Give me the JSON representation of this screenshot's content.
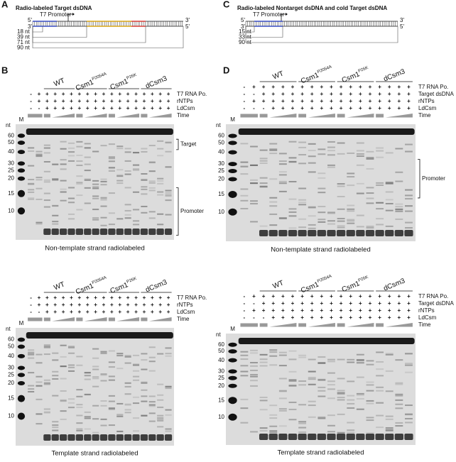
{
  "diagrams": [
    {
      "label": "A",
      "title": "Radio-labeled Target dsDNA",
      "promoter": "T7 Promoter",
      "strand_ends": [
        "5'",
        "3'",
        "3'",
        "5'"
      ],
      "lengths": [
        "18 nt",
        "39 nt",
        "71 nt",
        "90 nt"
      ]
    },
    {
      "label": "C",
      "title": "Radio-labeled Nontarget dsDNA and cold Target dsDNA",
      "promoter": "T7 Promoter",
      "strand_ends": [
        "5'",
        "3'",
        "3'",
        "5'"
      ],
      "lengths": [
        "15 nt",
        "33 nt",
        "90 nt"
      ]
    }
  ],
  "figures": [
    {
      "label": "B",
      "gels": [
        {
          "groups": [
            {
              "name": "WT"
            },
            {
              "name": "Csm1",
              "sup": "P2054A"
            },
            {
              "name": "Csm1",
              "sup": "P26K"
            },
            {
              "name": "dCsm3"
            }
          ],
          "conditions": [
            "T7 RNA Po.",
            "rNTPs",
            "LdCsm",
            "Time"
          ],
          "signs": [
            [
              "-",
              "+",
              "+",
              "+",
              "+",
              "+",
              "+",
              "+",
              "+",
              "+",
              "+",
              "+",
              "+",
              "+",
              "+",
              "+",
              "+",
              "+"
            ],
            [
              "-",
              "+",
              "+",
              "+",
              "+",
              "+",
              "+",
              "+",
              "+",
              "+",
              "+",
              "+",
              "+",
              "+",
              "+",
              "+",
              "+",
              "+"
            ],
            [
              "-",
              "-",
              "+",
              "+",
              "+",
              "+",
              "+",
              "+",
              "+",
              "+",
              "+",
              "+",
              "+",
              "+",
              "+",
              "+",
              "+",
              "+"
            ]
          ],
          "marker": "M",
          "unit": "nt",
          "ladder": [
            60,
            50,
            40,
            30,
            25,
            20,
            15,
            10
          ],
          "brackets": [
            "Target",
            "Promoter"
          ],
          "caption": "Non-template strand radiolabeled"
        },
        {
          "groups": [
            {
              "name": "WT"
            },
            {
              "name": "Csm1",
              "sup": "P2054A"
            },
            {
              "name": "Csm1",
              "sup": "P26K"
            },
            {
              "name": "dCsm3"
            }
          ],
          "conditions": [
            "T7 RNA Po.",
            "rNTPs",
            "LdCsm",
            "Time"
          ],
          "signs": [
            [
              "-",
              "+",
              "+",
              "+",
              "+",
              "+",
              "+",
              "+",
              "+",
              "+",
              "+",
              "+",
              "+",
              "+",
              "+",
              "+",
              "+",
              "+"
            ],
            [
              "-",
              "+",
              "+",
              "+",
              "+",
              "+",
              "+",
              "+",
              "+",
              "+",
              "+",
              "+",
              "+",
              "+",
              "+",
              "+",
              "+",
              "+"
            ],
            [
              "-",
              "-",
              "+",
              "+",
              "+",
              "+",
              "+",
              "+",
              "+",
              "+",
              "+",
              "+",
              "+",
              "+",
              "+",
              "+",
              "+",
              "+"
            ]
          ],
          "marker": "M",
          "unit": "nt",
          "ladder": [
            60,
            50,
            40,
            30,
            25,
            20,
            15,
            10
          ],
          "brackets": [],
          "caption": "Template strand radiolabeled"
        }
      ]
    },
    {
      "label": "D",
      "gels": [
        {
          "groups": [
            {
              "name": "WT"
            },
            {
              "name": "Csm1",
              "sup": "P2054A"
            },
            {
              "name": "Csm1",
              "sup": "P26K"
            },
            {
              "name": "dCsm3"
            }
          ],
          "conditions": [
            "T7 RNA Po.",
            "Target dsDNA",
            "rNTPs",
            "LdCsm",
            "Time"
          ],
          "signs": [
            [
              "-",
              "+",
              "+",
              "+",
              "+",
              "+",
              "+",
              "+",
              "+",
              "+",
              "+",
              "+",
              "+",
              "+",
              "+",
              "+",
              "+",
              "+"
            ],
            [
              "-",
              "-",
              "+",
              "+",
              "+",
              "+",
              "+",
              "+",
              "+",
              "+",
              "+",
              "+",
              "+",
              "+",
              "+",
              "+",
              "+",
              "+"
            ],
            [
              "-",
              "+",
              "+",
              "+",
              "+",
              "+",
              "+",
              "+",
              "+",
              "+",
              "+",
              "+",
              "+",
              "+",
              "+",
              "+",
              "+",
              "+"
            ],
            [
              "-",
              "-",
              "-",
              "+",
              "+",
              "+",
              "+",
              "+",
              "+",
              "+",
              "+",
              "+",
              "+",
              "+",
              "+",
              "+",
              "+",
              "+"
            ]
          ],
          "marker": "M",
          "unit": "nt",
          "ladder": [
            60,
            50,
            40,
            30,
            25,
            20,
            15,
            10
          ],
          "brackets": [
            "Promoter"
          ],
          "caption": "Non-template strand radiolabeled"
        },
        {
          "groups": [
            {
              "name": "WT"
            },
            {
              "name": "Csm1",
              "sup": "P2054A"
            },
            {
              "name": "Csm1",
              "sup": "P26K"
            },
            {
              "name": "dCsm3"
            }
          ],
          "conditions": [
            "T7 RNA Po.",
            "Target dsDNA",
            "rNTPs",
            "LdCsm",
            "Time"
          ],
          "signs": [
            [
              "-",
              "+",
              "+",
              "+",
              "+",
              "+",
              "+",
              "+",
              "+",
              "+",
              "+",
              "+",
              "+",
              "+",
              "+",
              "+",
              "+",
              "+"
            ],
            [
              "-",
              "-",
              "+",
              "+",
              "+",
              "+",
              "+",
              "+",
              "+",
              "+",
              "+",
              "+",
              "+",
              "+",
              "+",
              "+",
              "+",
              "+"
            ],
            [
              "-",
              "+",
              "+",
              "+",
              "+",
              "+",
              "+",
              "+",
              "+",
              "+",
              "+",
              "+",
              "+",
              "+",
              "+",
              "+",
              "+",
              "+"
            ],
            [
              "-",
              "-",
              "-",
              "+",
              "+",
              "+",
              "+",
              "+",
              "+",
              "+",
              "+",
              "+",
              "+",
              "+",
              "+",
              "+",
              "+",
              "+"
            ]
          ],
          "marker": "M",
          "unit": "nt",
          "ladder": [
            60,
            50,
            40,
            30,
            25,
            20,
            15,
            10
          ],
          "brackets": [],
          "caption": "Template strand radiolabeled"
        }
      ]
    }
  ]
}
